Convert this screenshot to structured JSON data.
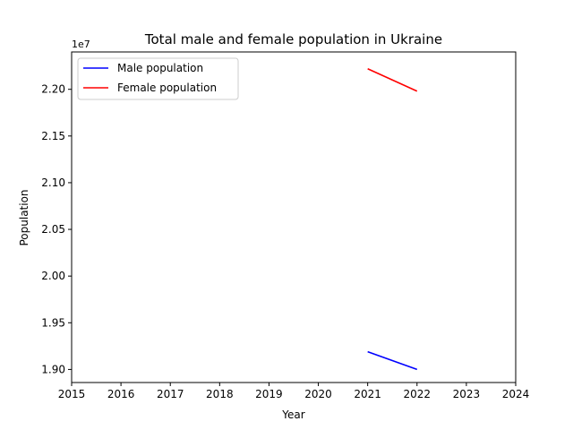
{
  "chart_data": {
    "type": "line",
    "title": "Total male and female population in Ukraine",
    "xlabel": "Year",
    "ylabel": "Population",
    "offset_label": "1e7",
    "xlim": [
      2015,
      2024
    ],
    "ylim": [
      18860000,
      22400000
    ],
    "x_ticks": [
      2015,
      2016,
      2017,
      2018,
      2019,
      2020,
      2021,
      2022,
      2023,
      2024
    ],
    "y_ticks": [
      19000000,
      19500000,
      20000000,
      20500000,
      21000000,
      21500000,
      22000000
    ],
    "y_tick_labels": [
      "1.90",
      "1.95",
      "2.00",
      "2.05",
      "2.10",
      "2.15",
      "2.20"
    ],
    "grid": false,
    "legend_position": "top-left",
    "series": [
      {
        "name": "Male population",
        "color": "#0000ff",
        "x": [
          2021,
          2022
        ],
        "y": [
          19190000,
          19000000
        ]
      },
      {
        "name": "Female population",
        "color": "#ff0000",
        "x": [
          2021,
          2022
        ],
        "y": [
          22220000,
          21980000
        ]
      }
    ]
  }
}
